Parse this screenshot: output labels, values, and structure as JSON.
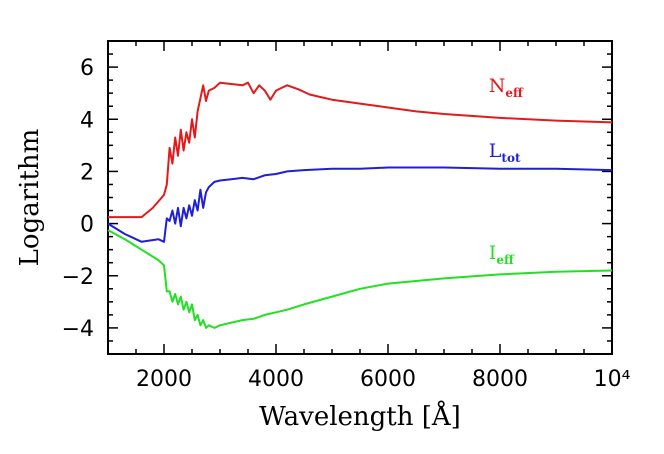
{
  "chart_data": {
    "type": "line",
    "xlabel": "Wavelength [Å]",
    "ylabel": "Logarithm",
    "xlim": [
      1000,
      10000
    ],
    "ylim": [
      -5,
      7
    ],
    "x_ticks": [
      {
        "value": 2000,
        "label": "2000"
      },
      {
        "value": 4000,
        "label": "4000"
      },
      {
        "value": 6000,
        "label": "6000"
      },
      {
        "value": 8000,
        "label": "8000"
      },
      {
        "value": 10000,
        "label": "10⁴"
      }
    ],
    "y_ticks": [
      {
        "value": -4,
        "label": "−4"
      },
      {
        "value": -2,
        "label": "−2"
      },
      {
        "value": 0,
        "label": "0"
      },
      {
        "value": 2,
        "label": "2"
      },
      {
        "value": 4,
        "label": "4"
      },
      {
        "value": 6,
        "label": "6"
      }
    ],
    "series": [
      {
        "name": "N",
        "subscript": "eff",
        "color": "#e31a1c",
        "label_pos": [
          8300,
          5.05
        ],
        "x": [
          1000,
          1600,
          1800,
          2000,
          2050,
          2100,
          2150,
          2200,
          2250,
          2300,
          2350,
          2400,
          2450,
          2500,
          2550,
          2600,
          2650,
          2700,
          2750,
          2800,
          2900,
          3000,
          3200,
          3400,
          3500,
          3600,
          3700,
          3800,
          3900,
          4000,
          4100,
          4200,
          4400,
          4600,
          4800,
          5000,
          5500,
          6000,
          6500,
          7000,
          8000,
          9000,
          10000
        ],
        "y": [
          0.25,
          0.25,
          0.6,
          1.1,
          1.5,
          2.9,
          2.3,
          3.3,
          2.6,
          3.6,
          2.8,
          3.5,
          3.1,
          4.0,
          3.3,
          4.3,
          4.8,
          5.3,
          4.7,
          5.1,
          5.2,
          5.4,
          5.35,
          5.3,
          5.4,
          5.0,
          5.3,
          5.1,
          4.75,
          5.1,
          5.2,
          5.3,
          5.15,
          4.95,
          4.85,
          4.75,
          4.6,
          4.45,
          4.3,
          4.2,
          4.05,
          3.95,
          3.88
        ]
      },
      {
        "name": "L",
        "subscript": "tot",
        "color": "#1f1fd6",
        "label_pos": [
          8300,
          2.55
        ],
        "x": [
          1000,
          1300,
          1600,
          1900,
          2000,
          2050,
          2100,
          2150,
          2200,
          2250,
          2300,
          2350,
          2400,
          2450,
          2500,
          2550,
          2600,
          2650,
          2700,
          2750,
          2800,
          2900,
          3000,
          3200,
          3400,
          3600,
          3800,
          4000,
          4200,
          4500,
          5000,
          5500,
          6000,
          7000,
          8000,
          9000,
          10000
        ],
        "y": [
          0.0,
          -0.4,
          -0.7,
          -0.6,
          -0.7,
          0.2,
          0.1,
          0.5,
          0.0,
          0.6,
          -0.1,
          0.6,
          0.2,
          0.7,
          0.3,
          0.9,
          0.5,
          1.3,
          0.6,
          1.2,
          1.4,
          1.6,
          1.65,
          1.7,
          1.75,
          1.7,
          1.85,
          1.9,
          2.0,
          2.05,
          2.1,
          2.1,
          2.15,
          2.15,
          2.1,
          2.1,
          2.05
        ]
      },
      {
        "name": "I",
        "subscript": "eff",
        "color": "#22e022",
        "label_pos": [
          8300,
          -1.35
        ],
        "x": [
          1000,
          1300,
          1600,
          1900,
          2000,
          2050,
          2100,
          2150,
          2200,
          2250,
          2300,
          2350,
          2400,
          2450,
          2500,
          2550,
          2600,
          2650,
          2700,
          2750,
          2800,
          2900,
          3000,
          3200,
          3400,
          3600,
          3800,
          4000,
          4200,
          4500,
          5000,
          5500,
          6000,
          7000,
          8000,
          9000,
          10000
        ],
        "y": [
          -0.25,
          -0.6,
          -1.0,
          -1.4,
          -1.6,
          -2.6,
          -2.6,
          -3.0,
          -2.7,
          -3.1,
          -2.8,
          -3.3,
          -3.0,
          -3.4,
          -3.1,
          -3.7,
          -3.5,
          -3.9,
          -3.7,
          -4.0,
          -3.9,
          -4.0,
          -3.9,
          -3.8,
          -3.7,
          -3.65,
          -3.5,
          -3.4,
          -3.3,
          -3.1,
          -2.8,
          -2.5,
          -2.3,
          -2.1,
          -1.95,
          -1.85,
          -1.8
        ]
      }
    ]
  }
}
